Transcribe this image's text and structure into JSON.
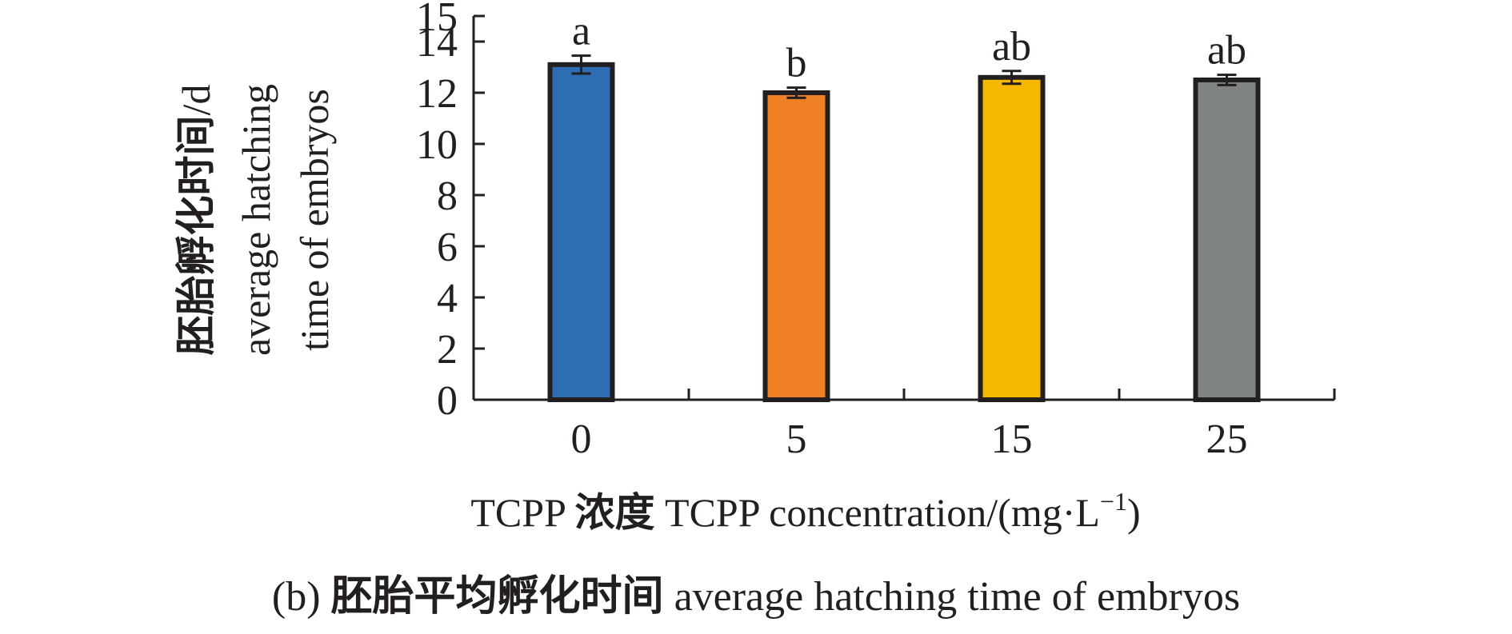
{
  "chart_data": {
    "type": "bar",
    "categories": [
      "0",
      "5",
      "15",
      "25"
    ],
    "values": [
      13.1,
      12.0,
      12.6,
      12.5
    ],
    "errors": [
      0.35,
      0.2,
      0.25,
      0.2
    ],
    "significance_labels": [
      "a",
      "b",
      "ab",
      "ab"
    ],
    "bar_colors": [
      "#2e6db4",
      "#ee7f22",
      "#f5b800",
      "#7f8383"
    ],
    "ylim": [
      0,
      15
    ],
    "yticks": [
      0,
      2,
      4,
      6,
      8,
      10,
      12,
      14
    ],
    "ytick_labels": [
      "0",
      "2",
      "4",
      "6",
      "8",
      "10",
      "12",
      "14"
    ],
    "ytop_label": "15",
    "ylabel": {
      "line1_cn": "胚胎孵化时间",
      "line1_unit": "/d",
      "line2": "average hatching",
      "line3": "time of embryos"
    },
    "xlabel": {
      "prefix": "TCPP",
      "cn": "浓度",
      "en": "TCPP concentration/(mg",
      "dot": "·",
      "unit_l": "L",
      "superscript": "−1",
      "close": ")"
    },
    "grid": false,
    "legend": "none"
  },
  "caption": {
    "label": "(b)",
    "cn": "胚胎平均孵化时间",
    "en": "average hatching time of embryos"
  },
  "colors": {
    "axis": "#231f20",
    "bar_outline": "#231f20"
  }
}
